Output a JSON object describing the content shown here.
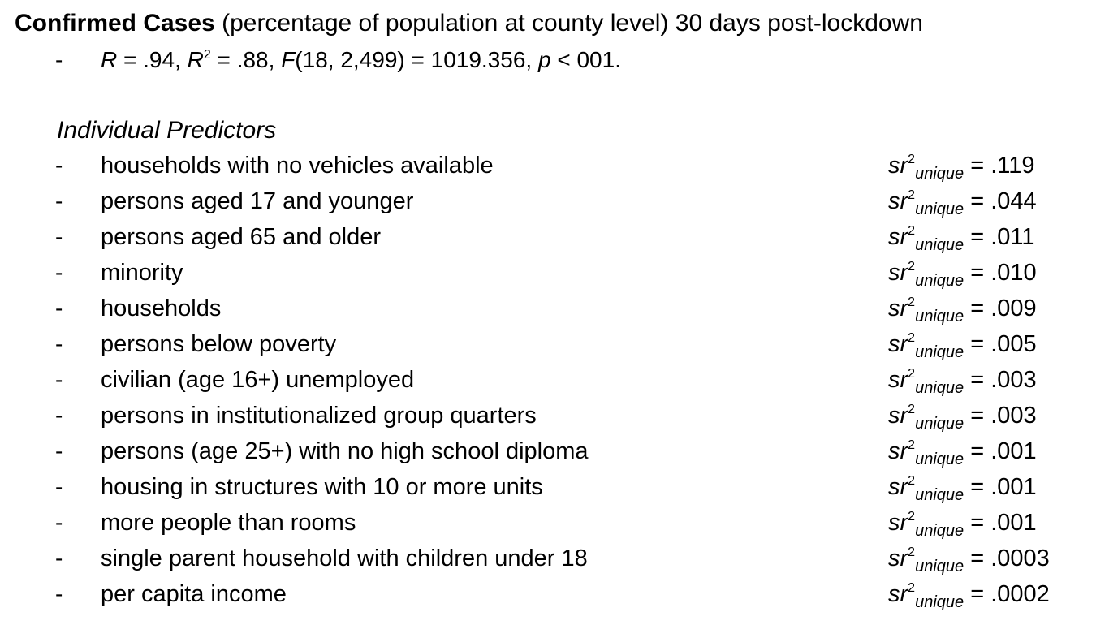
{
  "title": {
    "bold": "Confirmed Cases",
    "rest": " (percentage of population at county level) 30 days post-lockdown"
  },
  "stats": {
    "dash": "-",
    "r_symbol": "R",
    "r_text": " = .94, ",
    "r2_symbol": "R",
    "r2_exp": "2",
    "r2_text": " = .88, ",
    "f_symbol": "F",
    "f_text": "(18, 2,499) = 1019.356, ",
    "p_symbol": "p",
    "p_text": " < 001."
  },
  "section": {
    "heading": "Individual Predictors"
  },
  "stat_symbol": {
    "sr": "sr",
    "exp": "2",
    "sub": "unique",
    "eq": " = "
  },
  "predictors": [
    {
      "dash": "-",
      "label": "households with no vehicles available",
      "value": ".119"
    },
    {
      "dash": "-",
      "label": "persons aged 17 and younger",
      "value": ".044"
    },
    {
      "dash": "-",
      "label": "persons aged 65 and older",
      "value": ".011"
    },
    {
      "dash": "-",
      "label": "minority",
      "value": ".010"
    },
    {
      "dash": "-",
      "label": "households",
      "value": ".009"
    },
    {
      "dash": "-",
      "label": "persons below poverty",
      "value": ".005"
    },
    {
      "dash": "-",
      "label": "civilian (age 16+) unemployed",
      "value": ".003"
    },
    {
      "dash": "-",
      "label": "persons in institutionalized group quarters",
      "value": ".003"
    },
    {
      "dash": "-",
      "label": "persons (age 25+) with no high school diploma",
      "value": ".001"
    },
    {
      "dash": "-",
      "label": "housing in structures with 10 or more units",
      "value": ".001"
    },
    {
      "dash": "-",
      "label": "more people than rooms",
      "value": ".001"
    },
    {
      "dash": "-",
      "label": "single parent household with children under 18",
      "value": ".0003"
    },
    {
      "dash": "-",
      "label": "per capita income",
      "value": ".0002"
    }
  ]
}
